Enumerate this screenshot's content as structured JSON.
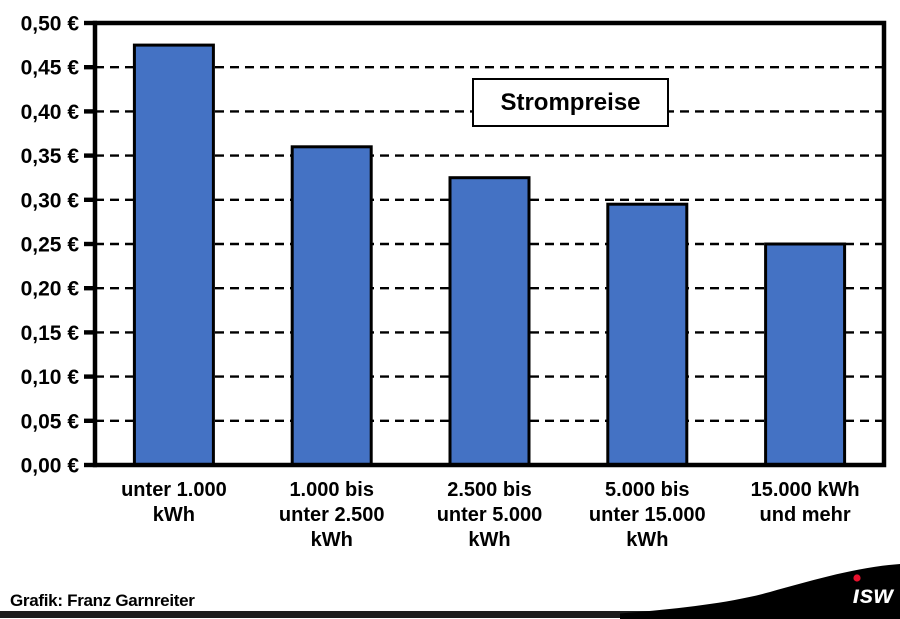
{
  "chart_data": {
    "type": "bar",
    "title": "Strompreise",
    "categories": [
      [
        "unter 1.000",
        "kWh"
      ],
      [
        "1.000 bis",
        "unter 2.500",
        "kWh"
      ],
      [
        "2.500 bis",
        "unter 5.000",
        "kWh"
      ],
      [
        "5.000 bis",
        "unter 15.000",
        "kWh"
      ],
      [
        "15.000 kWh",
        "und mehr"
      ]
    ],
    "values": [
      0.475,
      0.36,
      0.325,
      0.295,
      0.25
    ],
    "xlabel": "",
    "ylabel": "",
    "ylim": [
      0,
      0.5
    ],
    "ytick_step": 0.05,
    "ytick_labels": [
      "0,00 €",
      "0,05 €",
      "0,10 €",
      "0,15 €",
      "0,20 €",
      "0,25 €",
      "0,30 €",
      "0,35 €",
      "0,40 €",
      "0,45 €",
      "0,50 €"
    ],
    "grid": "dashed-horizontal",
    "legend": "none",
    "bar_color": "#4472C4",
    "bar_border_color": "#000000"
  },
  "footer": {
    "credit": "Grafik: Franz Garnreiter",
    "logo_text": "isw",
    "logo_dot_color": "#e8112d",
    "logo_bg_color": "#000000",
    "rule_color": "#1d1d1d"
  }
}
